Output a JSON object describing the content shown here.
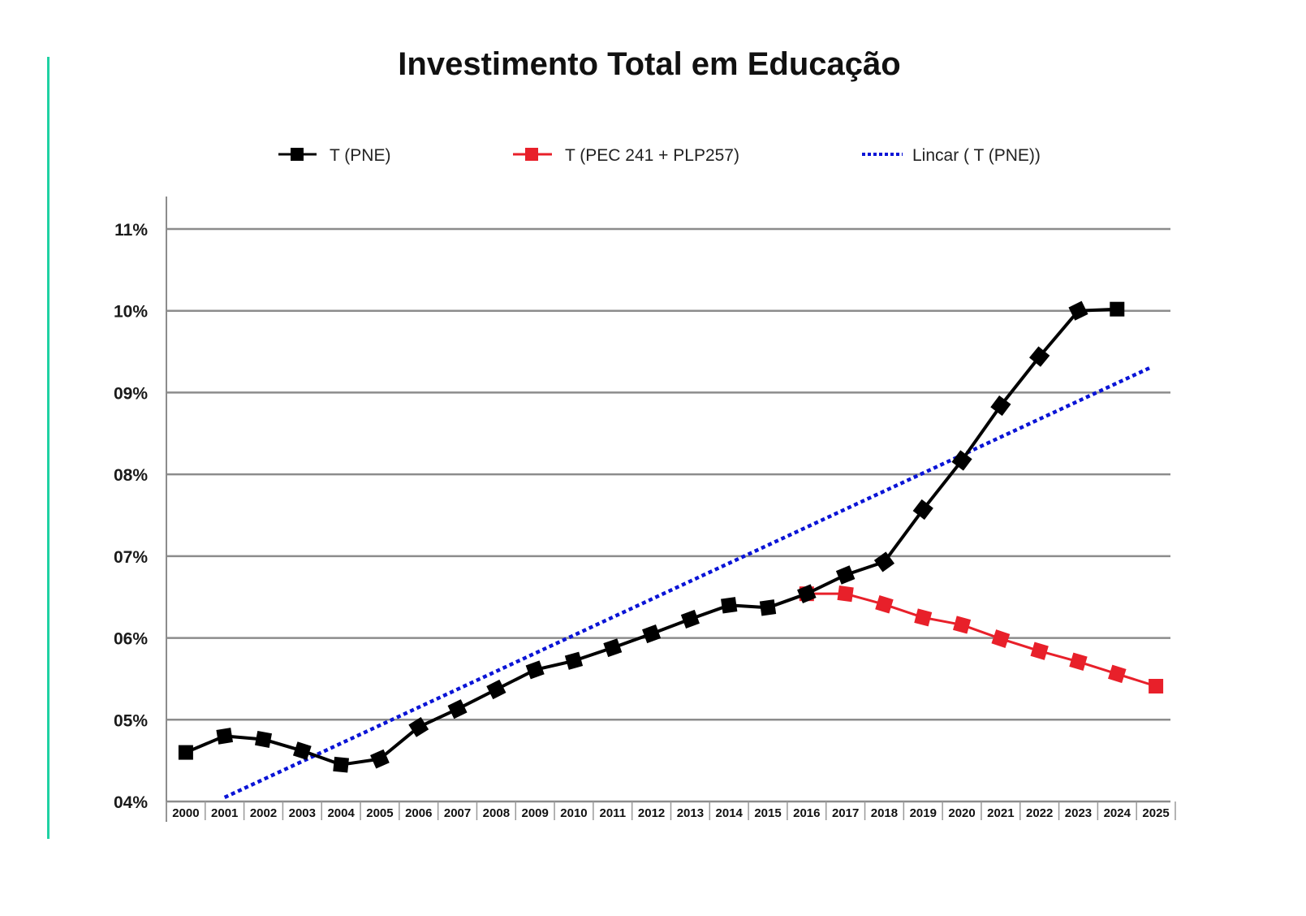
{
  "chart_data": {
    "type": "line",
    "title": "Investimento Total em Educação",
    "xlabel": "",
    "ylabel": "",
    "categories": [
      "2000",
      "2001",
      "2002",
      "2003",
      "2004",
      "2005",
      "2006",
      "2007",
      "2008",
      "2009",
      "2010",
      "2011",
      "2012",
      "2013",
      "2014",
      "2015",
      "2016",
      "2017",
      "2018",
      "2019",
      "2020",
      "2021",
      "2022",
      "2023",
      "2024",
      "2025"
    ],
    "y_ticks": [
      "04%",
      "05%",
      "06%",
      "07%",
      "08%",
      "09%",
      "10%",
      "11%"
    ],
    "ylim": [
      4,
      11
    ],
    "grid": true,
    "legend_position": "top",
    "series": [
      {
        "name": "T (PNE)",
        "color": "#000000",
        "marker": "square-diamond",
        "values": [
          4.6,
          4.8,
          4.76,
          4.62,
          4.45,
          4.52,
          4.91,
          5.13,
          5.37,
          5.61,
          5.72,
          5.88,
          6.05,
          6.23,
          6.4,
          6.37,
          6.54,
          6.77,
          6.93,
          7.57,
          8.17,
          8.84,
          9.44,
          10.0,
          10.02,
          null
        ]
      },
      {
        "name": "T (PEC 241 + PLP257)",
        "color": "#e8202a",
        "marker": "square-diamond",
        "values": [
          null,
          null,
          null,
          null,
          null,
          null,
          null,
          null,
          null,
          null,
          null,
          null,
          null,
          null,
          null,
          null,
          6.54,
          6.54,
          6.41,
          6.25,
          6.16,
          5.99,
          5.84,
          5.71,
          5.56,
          5.41
        ]
      },
      {
        "name": "Lincar ( T (PNE))",
        "color": "#0a14d6",
        "style": "dotted",
        "start": {
          "x": "2001",
          "y": 4.05
        },
        "end": {
          "x": "2025",
          "y": 9.3
        }
      }
    ]
  }
}
